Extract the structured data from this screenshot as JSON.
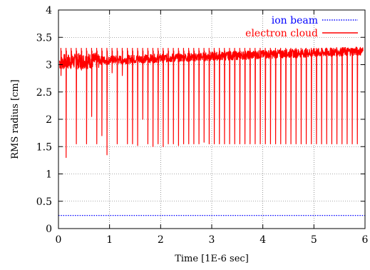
{
  "chart_data": {
    "type": "line",
    "title": "",
    "xlabel": "Time [1E-6 sec]",
    "ylabel": "RMS radius [cm]",
    "xlim": [
      0,
      6
    ],
    "ylim": [
      0,
      4
    ],
    "x_ticks": [
      0,
      1,
      2,
      3,
      4,
      5,
      6
    ],
    "y_ticks": [
      0,
      0.5,
      1,
      1.5,
      2,
      2.5,
      3,
      3.5,
      4
    ],
    "x_tick_labels": [
      "0",
      "1",
      "2",
      "3",
      "4",
      "5",
      "6"
    ],
    "y_tick_labels": [
      "0",
      "0.5",
      "1",
      "1.5",
      "2",
      "2.5",
      "3",
      "3.5",
      "4"
    ],
    "grid": true,
    "legend_position": "top-right",
    "series": [
      {
        "name": "ion beam",
        "color": "#0000ff",
        "style": "dotted",
        "x": [
          0,
          6
        ],
        "y": [
          0.24,
          0.24
        ]
      },
      {
        "name": "electron cloud",
        "color": "#ff0000",
        "style": "solid",
        "x_start": 0.02,
        "x_end": 5.96,
        "baseline_start": 3.05,
        "baseline_end": 3.25,
        "noise": 0.08,
        "spike_period": 0.1,
        "spike_minima": [
          2.8,
          1.3,
          2.95,
          1.55,
          2.9,
          1.55,
          2.05,
          1.55,
          1.7,
          1.35,
          2.85,
          1.55,
          2.8,
          1.55,
          1.55,
          1.52,
          2.0,
          1.55,
          1.5,
          1.55,
          1.5,
          1.55,
          1.55,
          1.52,
          1.55,
          1.55,
          1.55,
          1.55,
          1.58,
          1.55,
          1.55,
          1.55,
          1.55,
          1.55,
          1.55,
          1.55,
          1.55,
          1.55,
          1.55,
          1.55,
          1.55,
          1.55,
          1.55,
          1.55,
          1.55,
          1.55,
          1.55,
          1.55,
          1.55,
          1.55,
          1.55,
          1.55,
          1.55,
          1.55,
          1.55,
          1.55,
          1.55,
          1.55,
          1.55
        ]
      }
    ]
  }
}
